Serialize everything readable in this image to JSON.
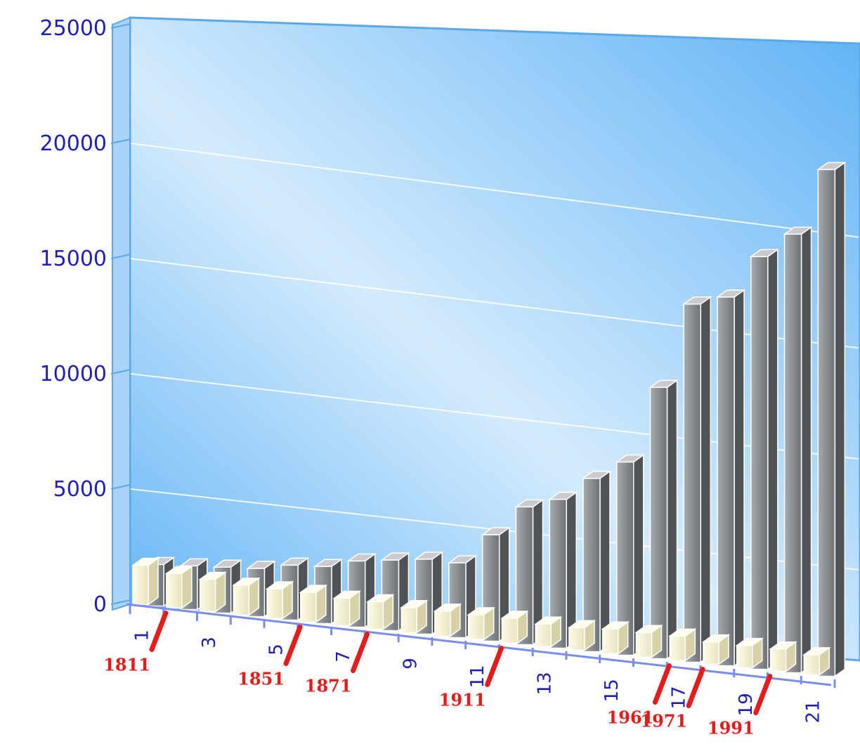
{
  "chart_data": {
    "type": "bar",
    "title": "",
    "xlabel": "",
    "ylabel": "",
    "ylim": [
      0,
      25000
    ],
    "grid": true,
    "yticks": [
      "0",
      "5000",
      "10000",
      "15000",
      "20000",
      "25000"
    ],
    "categories": [
      "1",
      "2",
      "3",
      "4",
      "5",
      "6",
      "7",
      "8",
      "9",
      "10",
      "11",
      "12",
      "13",
      "14",
      "15",
      "16",
      "17",
      "18",
      "19",
      "20",
      "21"
    ],
    "xtick_labels": [
      "1",
      "3",
      "5",
      "7",
      "9",
      "11",
      "13",
      "15",
      "17",
      "19",
      "21"
    ],
    "series": [
      {
        "values": [
          1800,
          1900,
          2000,
          2100,
          2400,
          2500,
          2900,
          3100,
          3300,
          3300,
          4700,
          6100,
          6600,
          7700,
          8600,
          12100,
          16000,
          16500,
          18500,
          19700,
          22800
        ]
      },
      {
        "values": [
          1700,
          1500,
          1400,
          1300,
          1300,
          1300,
          1200,
          1200,
          1100,
          1100,
          1100,
          1100,
          1000,
          1000,
          1100,
          1100,
          1100,
          1000,
          1000,
          1000,
          900
        ]
      }
    ],
    "annotations": [
      {
        "label": "1811",
        "category": "1"
      },
      {
        "label": "1851",
        "category": "5"
      },
      {
        "label": "1871",
        "category": "7"
      },
      {
        "label": "1911",
        "category": "11"
      },
      {
        "label": "1961",
        "category": "16"
      },
      {
        "label": "1971",
        "category": "17"
      },
      {
        "label": "1991",
        "category": "19"
      }
    ],
    "colors": {
      "wall_dark": "#5fb2f5",
      "wall_light": "#d4ebfd",
      "frame": "#5aa8ec",
      "bar_back": "#6e7176",
      "bar_front": "#f3f0cf",
      "tick_text": "#1f1fb8",
      "annotation": "#e51c1c"
    }
  }
}
